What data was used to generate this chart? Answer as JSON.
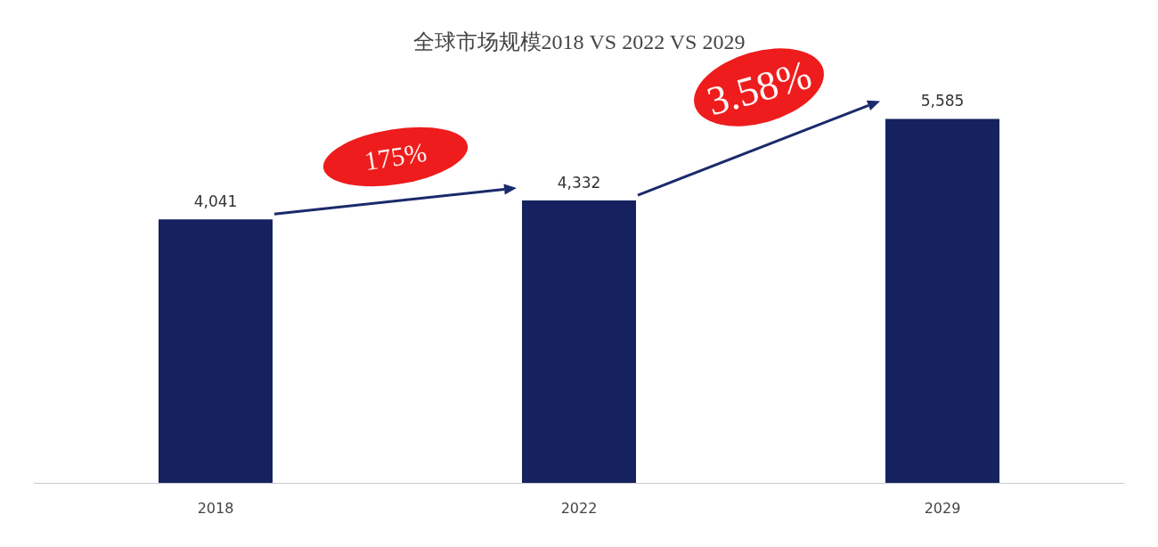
{
  "chart_data": {
    "type": "bar",
    "title": "全球市场规模2018 VS 2022 VS 2029",
    "categories": [
      "2018",
      "2022",
      "2029"
    ],
    "values": [
      4041,
      4332,
      5585
    ],
    "value_labels": [
      "4,041",
      "4,332",
      "5,585"
    ],
    "color": "#15225f",
    "grid": false,
    "annotations": [
      "175%",
      "3.58%"
    ]
  }
}
